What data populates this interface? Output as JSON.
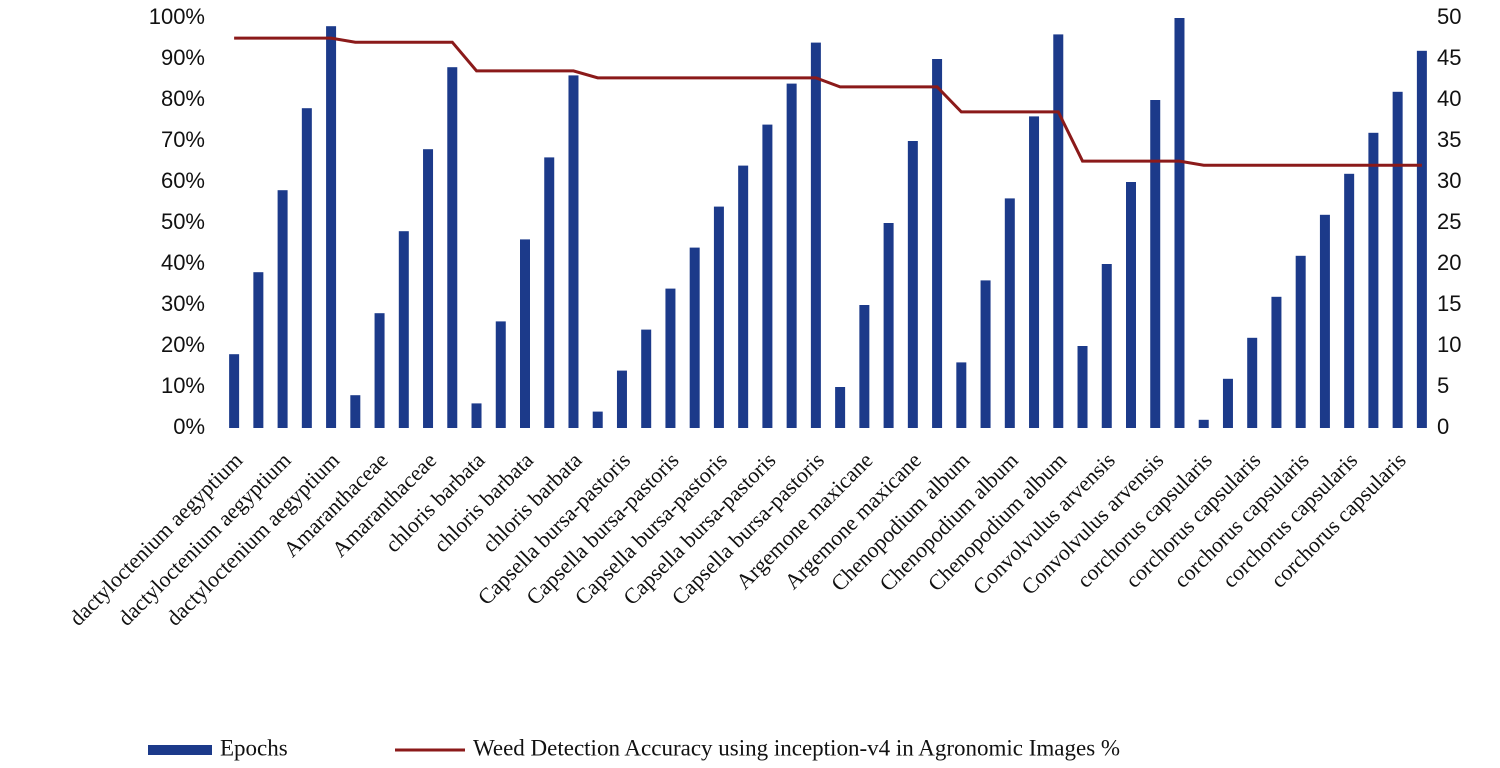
{
  "chart_data": {
    "type": "bar-line",
    "categories": [
      "dactyloctenium aegyptium",
      null,
      "dactyloctenium aegyptium",
      null,
      "dactyloctenium aegyptium",
      null,
      "Amaranthaceae",
      null,
      "Amaranthaceae",
      null,
      "chloris barbata",
      null,
      "chloris barbata",
      null,
      "chloris barbata",
      null,
      "Capsella bursa-pastoris",
      null,
      "Capsella bursa-pastoris",
      null,
      "Capsella bursa-pastoris",
      null,
      "Capsella bursa-pastoris",
      null,
      "Capsella bursa-pastoris",
      null,
      "Argemone maxicane",
      null,
      "Argemone maxicane",
      null,
      "Chenopodium album",
      null,
      "Chenopodium album",
      null,
      "Chenopodium album",
      null,
      "Convolvulus arvensis",
      null,
      "Convolvulus arvensis",
      null,
      "corchorus capsularis",
      null,
      "corchorus capsularis",
      null,
      "corchorus capsularis",
      null,
      "corchorus capsularis",
      null,
      "corchorus capsularis",
      null
    ],
    "series": [
      {
        "name": "Epochs",
        "kind": "bar",
        "axis": "y2",
        "color": "#1c3a8a",
        "values": [
          9,
          19,
          29,
          39,
          49,
          4,
          14,
          24,
          34,
          44,
          3,
          13,
          23,
          33,
          43,
          2,
          7,
          12,
          17,
          22,
          27,
          32,
          37,
          42,
          47,
          5,
          15,
          25,
          35,
          45,
          8,
          18,
          28,
          38,
          48,
          10,
          20,
          30,
          40,
          50,
          1,
          6,
          11,
          16,
          21,
          26,
          31,
          36,
          41,
          46
        ]
      },
      {
        "name": "Weed Detection Accuracy using inception-v4 in Agronomic Images %",
        "kind": "line",
        "color": "#8b1a1a",
        "values": [
          95.1,
          95.1,
          95.1,
          95.1,
          95.1,
          94.1,
          94.1,
          94.1,
          94.1,
          94.1,
          87.1,
          87.1,
          87.1,
          87.1,
          87.1,
          85.4,
          85.4,
          85.4,
          85.4,
          85.4,
          85.4,
          85.4,
          85.4,
          85.4,
          85.4,
          83.2,
          83.2,
          83.2,
          83.2,
          83.2,
          77.1,
          77.1,
          77.1,
          77.1,
          77.1,
          65.1,
          65.1,
          65.1,
          65.1,
          65.1,
          64.1,
          64.1,
          64.1,
          64.1,
          64.1,
          64.1,
          64.1,
          64.1,
          64.1,
          64.1
        ]
      }
    ],
    "ylim": [
      0,
      100
    ],
    "yticks": [
      {
        "value": 0,
        "label": "0%"
      },
      {
        "value": 10,
        "label": "10%"
      },
      {
        "value": 20,
        "label": "20%"
      },
      {
        "value": 30,
        "label": "30%"
      },
      {
        "value": 40,
        "label": "40%"
      },
      {
        "value": 50,
        "label": "50%"
      },
      {
        "value": 60,
        "label": "60%"
      },
      {
        "value": 70,
        "label": "70%"
      },
      {
        "value": 80,
        "label": "80%"
      },
      {
        "value": 90,
        "label": "90%"
      },
      {
        "value": 100,
        "label": "100%"
      }
    ],
    "y2lim": [
      0,
      50
    ],
    "y2ticks": [
      0,
      5,
      10,
      15,
      20,
      25,
      30,
      35,
      40,
      45,
      50
    ],
    "grid": false,
    "legend": "bottom"
  }
}
